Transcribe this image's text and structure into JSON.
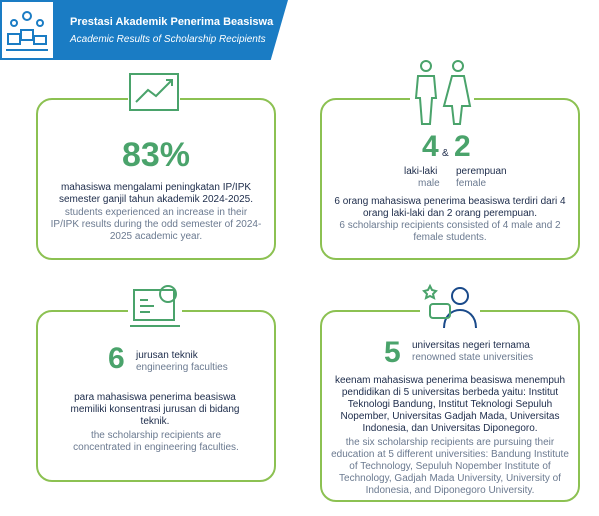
{
  "header": {
    "title": "Prestasi Akademik Penerima Beasiswa",
    "subtitle": "Academic Results of Scholarship Recipients"
  },
  "cards": [
    {
      "figure": "83%",
      "text_id": "mahasiswa mengalami peningkatan IP/IPK semester ganjil tahun akademik 2024-2025.",
      "text_en": "students experienced an increase in their IP/IPK results during the odd semester of 2024-2025 academic year."
    },
    {
      "male": {
        "number": "4",
        "label_id": "laki-laki",
        "label_en": "male"
      },
      "connector": "&",
      "female": {
        "number": "2",
        "label_id": "perempuan",
        "label_en": "female"
      },
      "text_id": "6 orang mahasiswa penerima beasiswa terdiri dari 4 orang laki-laki dan 2 orang perempuan.",
      "text_en": "6 scholarship recipients consisted of 4 male and 2 female students."
    },
    {
      "figure": "6",
      "label_id": "jurusan teknik",
      "label_en": "engineering faculties",
      "text_id": "para mahasiswa penerima beasiswa memiliki konsentrasi jurusan di bidang teknik.",
      "text_en": "the scholarship recipients are concentrated in engineering faculties."
    },
    {
      "figure": "5",
      "label_id": "universitas negeri ternama",
      "label_en": "renowned state universities",
      "text_id": "keenam mahasiswa penerima beasiswa menempuh pendidikan di 5 universitas berbeda yaitu: Institut Teknologi Bandung, Institut Teknologi Sepuluh Nopember, Universitas Gadjah Mada, Universitas Indonesia, dan Universitas Diponegoro.",
      "text_en": "the six scholarship recipients are pursuing their education at 5 different universities: Bandung Institute of Technology, Sepuluh Nopember Institute of Technology, Gadjah Mada University, University of Indonesia, and Diponegoro University."
    }
  ]
}
